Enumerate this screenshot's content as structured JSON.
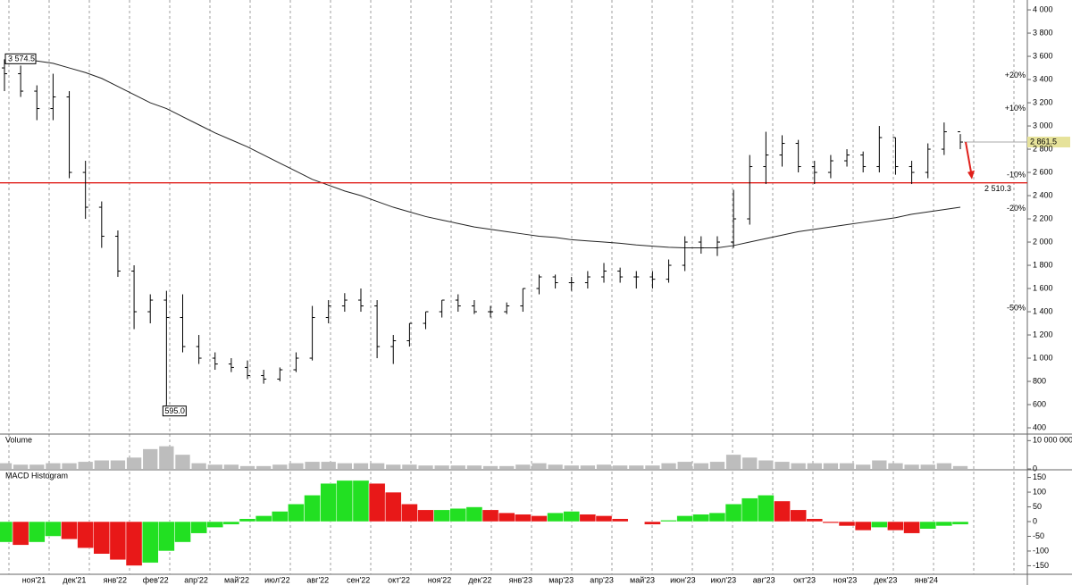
{
  "chart_data": {
    "type": "ohlc",
    "x_labels": [
      "ноя'21",
      "дек'21",
      "янв'22",
      "фев'22",
      "апр'22",
      "май'22",
      "июл'22",
      "авг'22",
      "сен'22",
      "окт'22",
      "ноя'22",
      "дек'22",
      "янв'23",
      "мар'23",
      "апр'23",
      "май'23",
      "июн'23",
      "июл'23",
      "авг'23",
      "окт'23",
      "ноя'23",
      "дек'23",
      "янв'24"
    ],
    "price": {
      "ylim": [
        354,
        4085
      ],
      "yticks": [
        {
          "value": 4000,
          "label": "4 000"
        },
        {
          "value": 3800,
          "label": "3 800"
        },
        {
          "value": 3600,
          "label": "3 600"
        },
        {
          "value": 3400,
          "label": "3 400"
        },
        {
          "value": 3200,
          "label": "3 200"
        },
        {
          "value": 3000,
          "label": "3 000"
        },
        {
          "value": 2800,
          "label": "2 800"
        },
        {
          "value": 2600,
          "label": "2 600"
        },
        {
          "value": 2400,
          "label": "2 400"
        },
        {
          "value": 2200,
          "label": "2 200"
        },
        {
          "value": 2000,
          "label": "2 000"
        },
        {
          "value": 1800,
          "label": "1 800"
        },
        {
          "value": 1600,
          "label": "1 600"
        },
        {
          "value": 1400,
          "label": "1 400"
        },
        {
          "value": 1200,
          "label": "1 200"
        },
        {
          "value": 1000,
          "label": "1 000"
        },
        800,
        600,
        400
      ],
      "color": "#000000",
      "open": [
        3500,
        3450,
        3300,
        3150,
        3250,
        2600,
        2300,
        2050,
        1750,
        1400,
        1500,
        1350,
        1100,
        1000,
        950,
        920,
        850,
        820,
        900,
        1000,
        1350,
        1450,
        1500,
        1450,
        1100,
        1150,
        1300,
        1400,
        1500,
        1450,
        1400,
        1400,
        1450,
        1600,
        1700,
        1650,
        1650,
        1700,
        1750,
        1700,
        1700,
        1680,
        1800,
        2000,
        1950,
        2000,
        2200,
        2650,
        2750,
        2850,
        2650,
        2600,
        2700,
        2750,
        2650,
        2900,
        2650,
        2600,
        2800,
        2950
      ],
      "high": [
        3574.5,
        3520,
        3350,
        3450,
        3300,
        2700,
        2350,
        2100,
        1800,
        1550,
        1580,
        1550,
        1200,
        1050,
        1000,
        980,
        900,
        920,
        1050,
        1450,
        1500,
        1560,
        1600,
        1500,
        1200,
        1300,
        1400,
        1500,
        1550,
        1500,
        1450,
        1480,
        1600,
        1720,
        1720,
        1700,
        1750,
        1820,
        1780,
        1750,
        1750,
        1850,
        2050,
        2050,
        2050,
        2450,
        2750,
        2950,
        2920,
        2880,
        2700,
        2750,
        2800,
        2780,
        3000,
        2900,
        2700,
        2850,
        3030,
        2930
      ],
      "low": [
        3300,
        3250,
        3050,
        3050,
        2550,
        2200,
        1950,
        1700,
        1250,
        1300,
        595,
        1050,
        950,
        900,
        880,
        820,
        780,
        800,
        880,
        980,
        1300,
        1400,
        1400,
        1000,
        950,
        1100,
        1250,
        1350,
        1400,
        1380,
        1350,
        1380,
        1400,
        1550,
        1600,
        1580,
        1600,
        1650,
        1650,
        1600,
        1600,
        1650,
        1750,
        1900,
        1880,
        1950,
        2150,
        2500,
        2650,
        2600,
        2500,
        2550,
        2650,
        2600,
        2600,
        2580,
        2500,
        2550,
        2750,
        2800
      ],
      "close": [
        3450,
        3300,
        3150,
        3250,
        2600,
        2300,
        2050,
        1750,
        1400,
        1500,
        1350,
        1100,
        1000,
        950,
        920,
        850,
        820,
        900,
        1000,
        1350,
        1450,
        1500,
        1450,
        1100,
        1150,
        1300,
        1400,
        1500,
        1450,
        1400,
        1400,
        1450,
        1600,
        1700,
        1650,
        1650,
        1700,
        1750,
        1700,
        1700,
        1680,
        1800,
        2000,
        1950,
        2000,
        2200,
        2650,
        2750,
        2850,
        2650,
        2600,
        2700,
        2750,
        2650,
        2900,
        2650,
        2600,
        2800,
        2950,
        2861.5
      ],
      "ma": [
        3570,
        3565,
        3560,
        3540,
        3500,
        3460,
        3410,
        3340,
        3270,
        3200,
        3150,
        3080,
        3010,
        2940,
        2880,
        2820,
        2750,
        2680,
        2610,
        2540,
        2490,
        2440,
        2400,
        2350,
        2300,
        2260,
        2220,
        2190,
        2160,
        2130,
        2110,
        2090,
        2070,
        2050,
        2040,
        2020,
        2010,
        2000,
        1990,
        1975,
        1965,
        1955,
        1950,
        1950,
        1950,
        1970,
        2000,
        2030,
        2060,
        2090,
        2110,
        2130,
        2150,
        2170,
        2190,
        2210,
        2240,
        2260,
        2280,
        2300
      ],
      "ma_color": "#222222",
      "high_label": {
        "value": 3574.5,
        "label": "3 574.5"
      },
      "low_label": {
        "value": 595,
        "label": "595.0"
      },
      "last_label": {
        "value": 2861.5,
        "label": "2 861.5"
      },
      "level": {
        "value": 2510.3,
        "label": "2 510.3",
        "color": "#e0201b"
      },
      "pct_levels": [
        {
          "value": 20,
          "label": "+20%",
          "color": "#2a9d2a"
        },
        {
          "value": 10,
          "label": "+10%",
          "color": "#2a9d2a"
        },
        {
          "value": -10,
          "label": "-10%",
          "color": "#e0201b"
        },
        {
          "value": -20,
          "label": "-20%",
          "color": "#e0201b"
        },
        {
          "value": -50,
          "label": "-50%",
          "color": "#e0201b"
        }
      ]
    },
    "volume": {
      "title": "Volume",
      "ylim": [
        0,
        12000000
      ],
      "yticks": [
        {
          "value": 10000000,
          "label": "10 000 000"
        },
        0
      ],
      "color": "#bdbdbd",
      "values": [
        2000000,
        1500000,
        1500000,
        2000000,
        2000000,
        2500000,
        3000000,
        3000000,
        4000000,
        7000000,
        8000000,
        5000000,
        2000000,
        1500000,
        1500000,
        1000000,
        1000000,
        1500000,
        2000000,
        2500000,
        2500000,
        2000000,
        2000000,
        2000000,
        1500000,
        1500000,
        1200000,
        1200000,
        1200000,
        1200000,
        1000000,
        1000000,
        1500000,
        2000000,
        1500000,
        1200000,
        1200000,
        1500000,
        1200000,
        1200000,
        1200000,
        2000000,
        2500000,
        2000000,
        2500000,
        5000000,
        4000000,
        3000000,
        2500000,
        2000000,
        2000000,
        2000000,
        2000000,
        1500000,
        3000000,
        2000000,
        1500000,
        1500000,
        2000000,
        1000000
      ]
    },
    "macd": {
      "title": "MACD Histogram",
      "ylim": [
        -179,
        173
      ],
      "yticks": [
        150,
        100,
        50,
        0,
        -50,
        -100,
        -150
      ],
      "up_color": "#22e022",
      "down_color": "#e81818",
      "values": [
        -70,
        -80,
        -70,
        -50,
        -60,
        -90,
        -110,
        -130,
        -150,
        -140,
        -100,
        -70,
        -40,
        -20,
        -10,
        10,
        20,
        35,
        60,
        90,
        130,
        140,
        140,
        130,
        100,
        60,
        40,
        40,
        45,
        50,
        40,
        30,
        25,
        20,
        30,
        35,
        25,
        20,
        10,
        0,
        -10,
        5,
        20,
        25,
        30,
        60,
        80,
        90,
        70,
        40,
        10,
        -5,
        -15,
        -30,
        -20,
        -30,
        -40,
        -25,
        -15,
        -10
      ]
    }
  }
}
